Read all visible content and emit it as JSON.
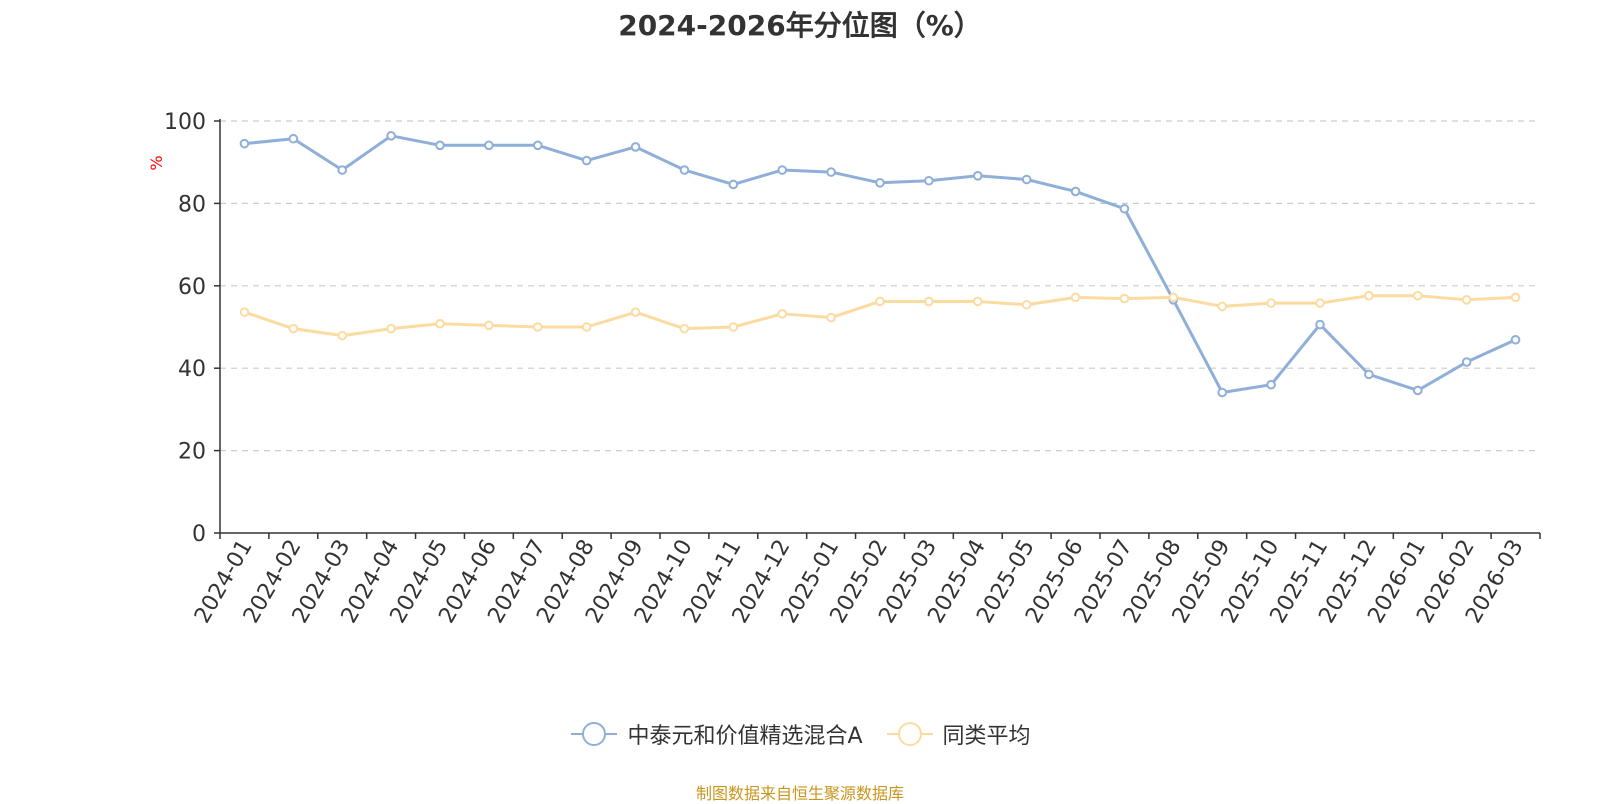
{
  "chart_data": {
    "type": "line",
    "title": "2024-2026年分位图（%）",
    "ylabel": "%",
    "xlabel": "",
    "ylim": [
      0,
      100
    ],
    "yticks": [
      0,
      20,
      40,
      60,
      80,
      100
    ],
    "grid": true,
    "legend_position": "bottom",
    "categories": [
      "2024-01",
      "2024-02",
      "2024-03",
      "2024-04",
      "2024-05",
      "2024-06",
      "2024-07",
      "2024-08",
      "2024-09",
      "2024-10",
      "2024-11",
      "2024-12",
      "2025-01",
      "2025-02",
      "2025-03",
      "2025-04",
      "2025-05",
      "2025-06",
      "2025-07",
      "2025-08",
      "2025-09",
      "2025-10",
      "2025-11",
      "2025-12",
      "2026-01",
      "2026-02",
      "2026-03"
    ],
    "series": [
      {
        "name": "中泰元和价值精选混合A",
        "color": "#8fafd9",
        "values": [
          94.5,
          95.7,
          88.1,
          96.4,
          94.1,
          94.1,
          94.1,
          90.4,
          93.7,
          88.1,
          84.6,
          88.1,
          87.6,
          85.0,
          85.5,
          86.7,
          85.8,
          82.9,
          78.7,
          56.6,
          34.1,
          36.0,
          50.6,
          38.5,
          34.6,
          41.5,
          46.9
        ]
      },
      {
        "name": "同类平均",
        "color": "#fcdba0",
        "values": [
          53.6,
          49.6,
          47.9,
          49.6,
          50.8,
          50.4,
          50.0,
          50.0,
          53.6,
          49.6,
          50.0,
          53.2,
          52.3,
          56.2,
          56.2,
          56.2,
          55.4,
          57.2,
          56.9,
          57.2,
          55.0,
          55.8,
          55.8,
          57.6,
          57.6,
          56.6,
          57.2
        ]
      }
    ]
  },
  "footer": {
    "source": "制图数据来自恒生聚源数据库"
  }
}
